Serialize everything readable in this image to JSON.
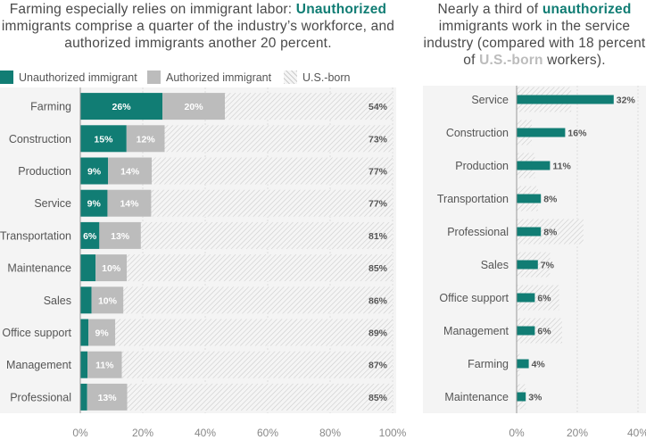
{
  "colors": {
    "unauthorized": "#117d74",
    "authorized": "#bcbcbc",
    "us_born_bg": "#f5f5f5",
    "us_born_hatch": "#cccccc",
    "text": "#555555",
    "panel_bg": "#f4f4f4"
  },
  "left_title": {
    "part1": "Farming especially relies on immigrant labor: ",
    "highlight": "Unauthorized",
    "part2": " immigrants comprise a quarter of the industry’s workforce, and authorized immigrants another 20 percent."
  },
  "right_title": {
    "part1": "Nearly a third of ",
    "highlight1": "unauthorized",
    "part2": " immigrants work in the service industry (compared with 18 percent of ",
    "highlight2": "U.S.-born",
    "part3": " workers)."
  },
  "legend": {
    "unauthorized": "Unauthorized immigrant",
    "authorized": "Authorized immigrant",
    "us_born": "U.S.-born"
  },
  "chart_data": [
    {
      "type": "bar",
      "orientation": "horizontal",
      "stacked": true,
      "categories": [
        "Farming",
        "Construction",
        "Production",
        "Service",
        "Transportation",
        "Maintenance",
        "Sales",
        "Office support",
        "Management",
        "Professional"
      ],
      "series": [
        {
          "name": "Unauthorized immigrant",
          "values": [
            26.3,
            14.8,
            8.9,
            8.7,
            6.1,
            4.9,
            3.6,
            2.6,
            2.3,
            2.2
          ],
          "labels": [
            "26%",
            "15%",
            "9%",
            "9%",
            "6%",
            "",
            "",
            "",
            "",
            ""
          ]
        },
        {
          "name": "Authorized immigrant",
          "values": [
            20.0,
            12.2,
            14.0,
            14.0,
            13.3,
            10.0,
            10.2,
            8.6,
            11.0,
            12.8
          ],
          "labels": [
            "20%",
            "12%",
            "14%",
            "14%",
            "13%",
            "10%",
            "10%",
            "9%",
            "11%",
            "13%"
          ]
        },
        {
          "name": "U.S.-born",
          "values": [
            53.7,
            73.0,
            77.1,
            77.3,
            80.6,
            85.1,
            86.2,
            88.8,
            86.7,
            85.0
          ],
          "labels": [
            "54%",
            "73%",
            "77%",
            "77%",
            "81%",
            "85%",
            "86%",
            "89%",
            "87%",
            "85%"
          ]
        }
      ],
      "xlim": [
        0,
        100
      ],
      "x_ticks": [
        "0%",
        "20%",
        "40%",
        "60%",
        "80%",
        "100%"
      ],
      "legend": "top"
    },
    {
      "type": "bar",
      "orientation": "horizontal",
      "categories": [
        "Service",
        "Construction",
        "Production",
        "Transportation",
        "Professional",
        "Sales",
        "Office support",
        "Management",
        "Farming",
        "Maintenance"
      ],
      "series": [
        {
          "name": "Unauthorized immigrant",
          "values": [
            32,
            16,
            11,
            8,
            8,
            7,
            6,
            6,
            4,
            3
          ],
          "labels": [
            "32%",
            "16%",
            "11%",
            "8%",
            "8%",
            "7%",
            "6%",
            "6%",
            "4%",
            "3%"
          ]
        },
        {
          "name": "U.S.-born",
          "values": [
            18,
            5,
            6,
            7,
            22,
            11,
            14,
            15,
            1,
            3
          ]
        }
      ],
      "xlim": [
        0,
        40
      ],
      "x_ticks": [
        "0%",
        "20%",
        "40%"
      ]
    }
  ]
}
